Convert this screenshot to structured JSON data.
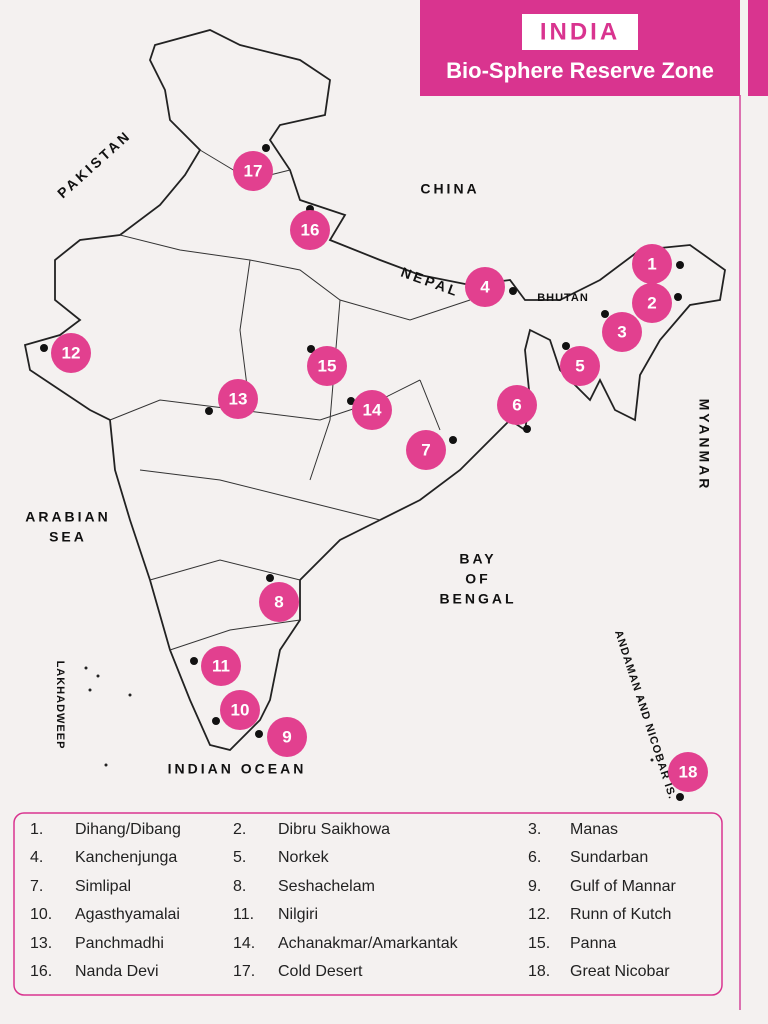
{
  "header": {
    "title": "INDIA",
    "subtitle": "Bio-Sphere Reserve Zone"
  },
  "labels": {
    "pakistan": "PAKISTAN",
    "china": "CHINA",
    "nepal": "NEPAL",
    "bhutan": "BHUTAN",
    "myanmar": "MYANMAR",
    "arabian": "ARABIAN",
    "sea": "SEA",
    "bay": "BAY",
    "of": "OF",
    "bengal": "BENGAL",
    "indian_ocean": "INDIAN OCEAN",
    "lakhadweep": "LAKHADWEEP",
    "andaman": "ANDAMAN AND NICOBAR IS."
  },
  "markers": [
    "1",
    "2",
    "3",
    "4",
    "5",
    "6",
    "7",
    "8",
    "9",
    "10",
    "11",
    "12",
    "13",
    "14",
    "15",
    "16",
    "17",
    "18"
  ],
  "legend": [
    {
      "number": "1.",
      "name": "Dihang/Dibang"
    },
    {
      "number": "2.",
      "name": "Dibru Saikhowa"
    },
    {
      "number": "3.",
      "name": "Manas"
    },
    {
      "number": "4.",
      "name": "Kanchenjunga"
    },
    {
      "number": "5.",
      "name": "Norkek"
    },
    {
      "number": "6.",
      "name": "Sundarban"
    },
    {
      "number": "7.",
      "name": "Simlipal"
    },
    {
      "number": "8.",
      "name": "Seshachelam"
    },
    {
      "number": "9.",
      "name": "Gulf of Mannar"
    },
    {
      "number": "10.",
      "name": "Agasthyamalai"
    },
    {
      "number": "11.",
      "name": "Nilgiri"
    },
    {
      "number": "12.",
      "name": "Runn of Kutch"
    },
    {
      "number": "13.",
      "name": "Panchmadhi"
    },
    {
      "number": "14.",
      "name": "Achanakmar/Amarkantak"
    },
    {
      "number": "15.",
      "name": "Panna"
    },
    {
      "number": "16.",
      "name": "Nanda Devi"
    },
    {
      "number": "17.",
      "name": "Cold Desert"
    },
    {
      "number": "18.",
      "name": "Great Nicobar"
    }
  ]
}
